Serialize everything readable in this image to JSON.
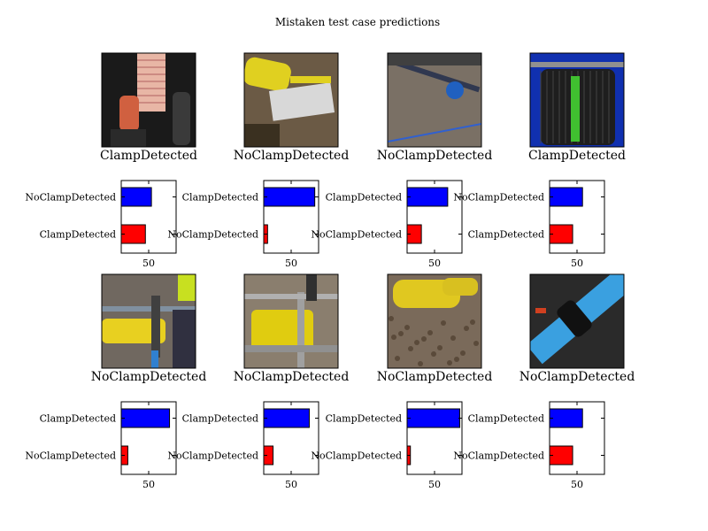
{
  "title": "Mistaken test case predictions",
  "colors": {
    "top_bar": "#0000ff",
    "bottom_bar": "#ff0000",
    "axis": "#000000"
  },
  "chart_data": [
    {
      "type": "bar",
      "orientation": "horizontal",
      "caption": "ClampDetected",
      "image": "photo-brick-wall-with-cables",
      "categories": [
        "NoClampDetected",
        "ClampDetected"
      ],
      "values": [
        55,
        44
      ],
      "xticks": [
        50
      ],
      "xlim": [
        0,
        100
      ]
    },
    {
      "type": "bar",
      "orientation": "horizontal",
      "caption": "NoClampDetected",
      "image": "photo-yellow-pipe-fitting-tools",
      "categories": [
        "ClampDetected",
        "NoClampDetected"
      ],
      "values": [
        93,
        7
      ],
      "xticks": [
        50
      ],
      "xlim": [
        0,
        100
      ]
    },
    {
      "type": "bar",
      "orientation": "horizontal",
      "caption": "NoClampDetected",
      "image": "photo-blue-valve-in-soil",
      "categories": [
        "ClampDetected",
        "NoClampDetected"
      ],
      "values": [
        74,
        26
      ],
      "xticks": [
        50
      ],
      "xlim": [
        0,
        100
      ]
    },
    {
      "type": "bar",
      "orientation": "horizontal",
      "caption": "ClampDetected",
      "image": "photo-black-coiled-pipe-green-tape",
      "categories": [
        "NoClampDetected",
        "ClampDetected"
      ],
      "values": [
        60,
        42
      ],
      "xticks": [
        50
      ],
      "xlim": [
        0,
        100
      ]
    },
    {
      "type": "bar",
      "orientation": "horizontal",
      "caption": "NoClampDetected",
      "image": "photo-yellow-clamp-with-metal-rig",
      "categories": [
        "ClampDetected",
        "NoClampDetected"
      ],
      "values": [
        88,
        12
      ],
      "xticks": [
        50
      ],
      "xlim": [
        0,
        100
      ]
    },
    {
      "type": "bar",
      "orientation": "horizontal",
      "caption": "NoClampDetected",
      "image": "photo-yellow-machine-metal-frame",
      "categories": [
        "ClampDetected",
        "NoClampDetected"
      ],
      "values": [
        83,
        17
      ],
      "xticks": [
        50
      ],
      "xlim": [
        0,
        100
      ]
    },
    {
      "type": "bar",
      "orientation": "horizontal",
      "caption": "NoClampDetected",
      "image": "photo-yellow-tool-on-gravel",
      "categories": [
        "ClampDetected",
        "NoClampDetected"
      ],
      "values": [
        96,
        6
      ],
      "xticks": [
        50
      ],
      "xlim": [
        0,
        100
      ]
    },
    {
      "type": "bar",
      "orientation": "horizontal",
      "caption": "NoClampDetected",
      "image": "photo-blue-pipe-black-coupling",
      "categories": [
        "ClampDetected",
        "NoClampDetected"
      ],
      "values": [
        60,
        42
      ],
      "xticks": [
        50
      ],
      "xlim": [
        0,
        100
      ]
    }
  ]
}
